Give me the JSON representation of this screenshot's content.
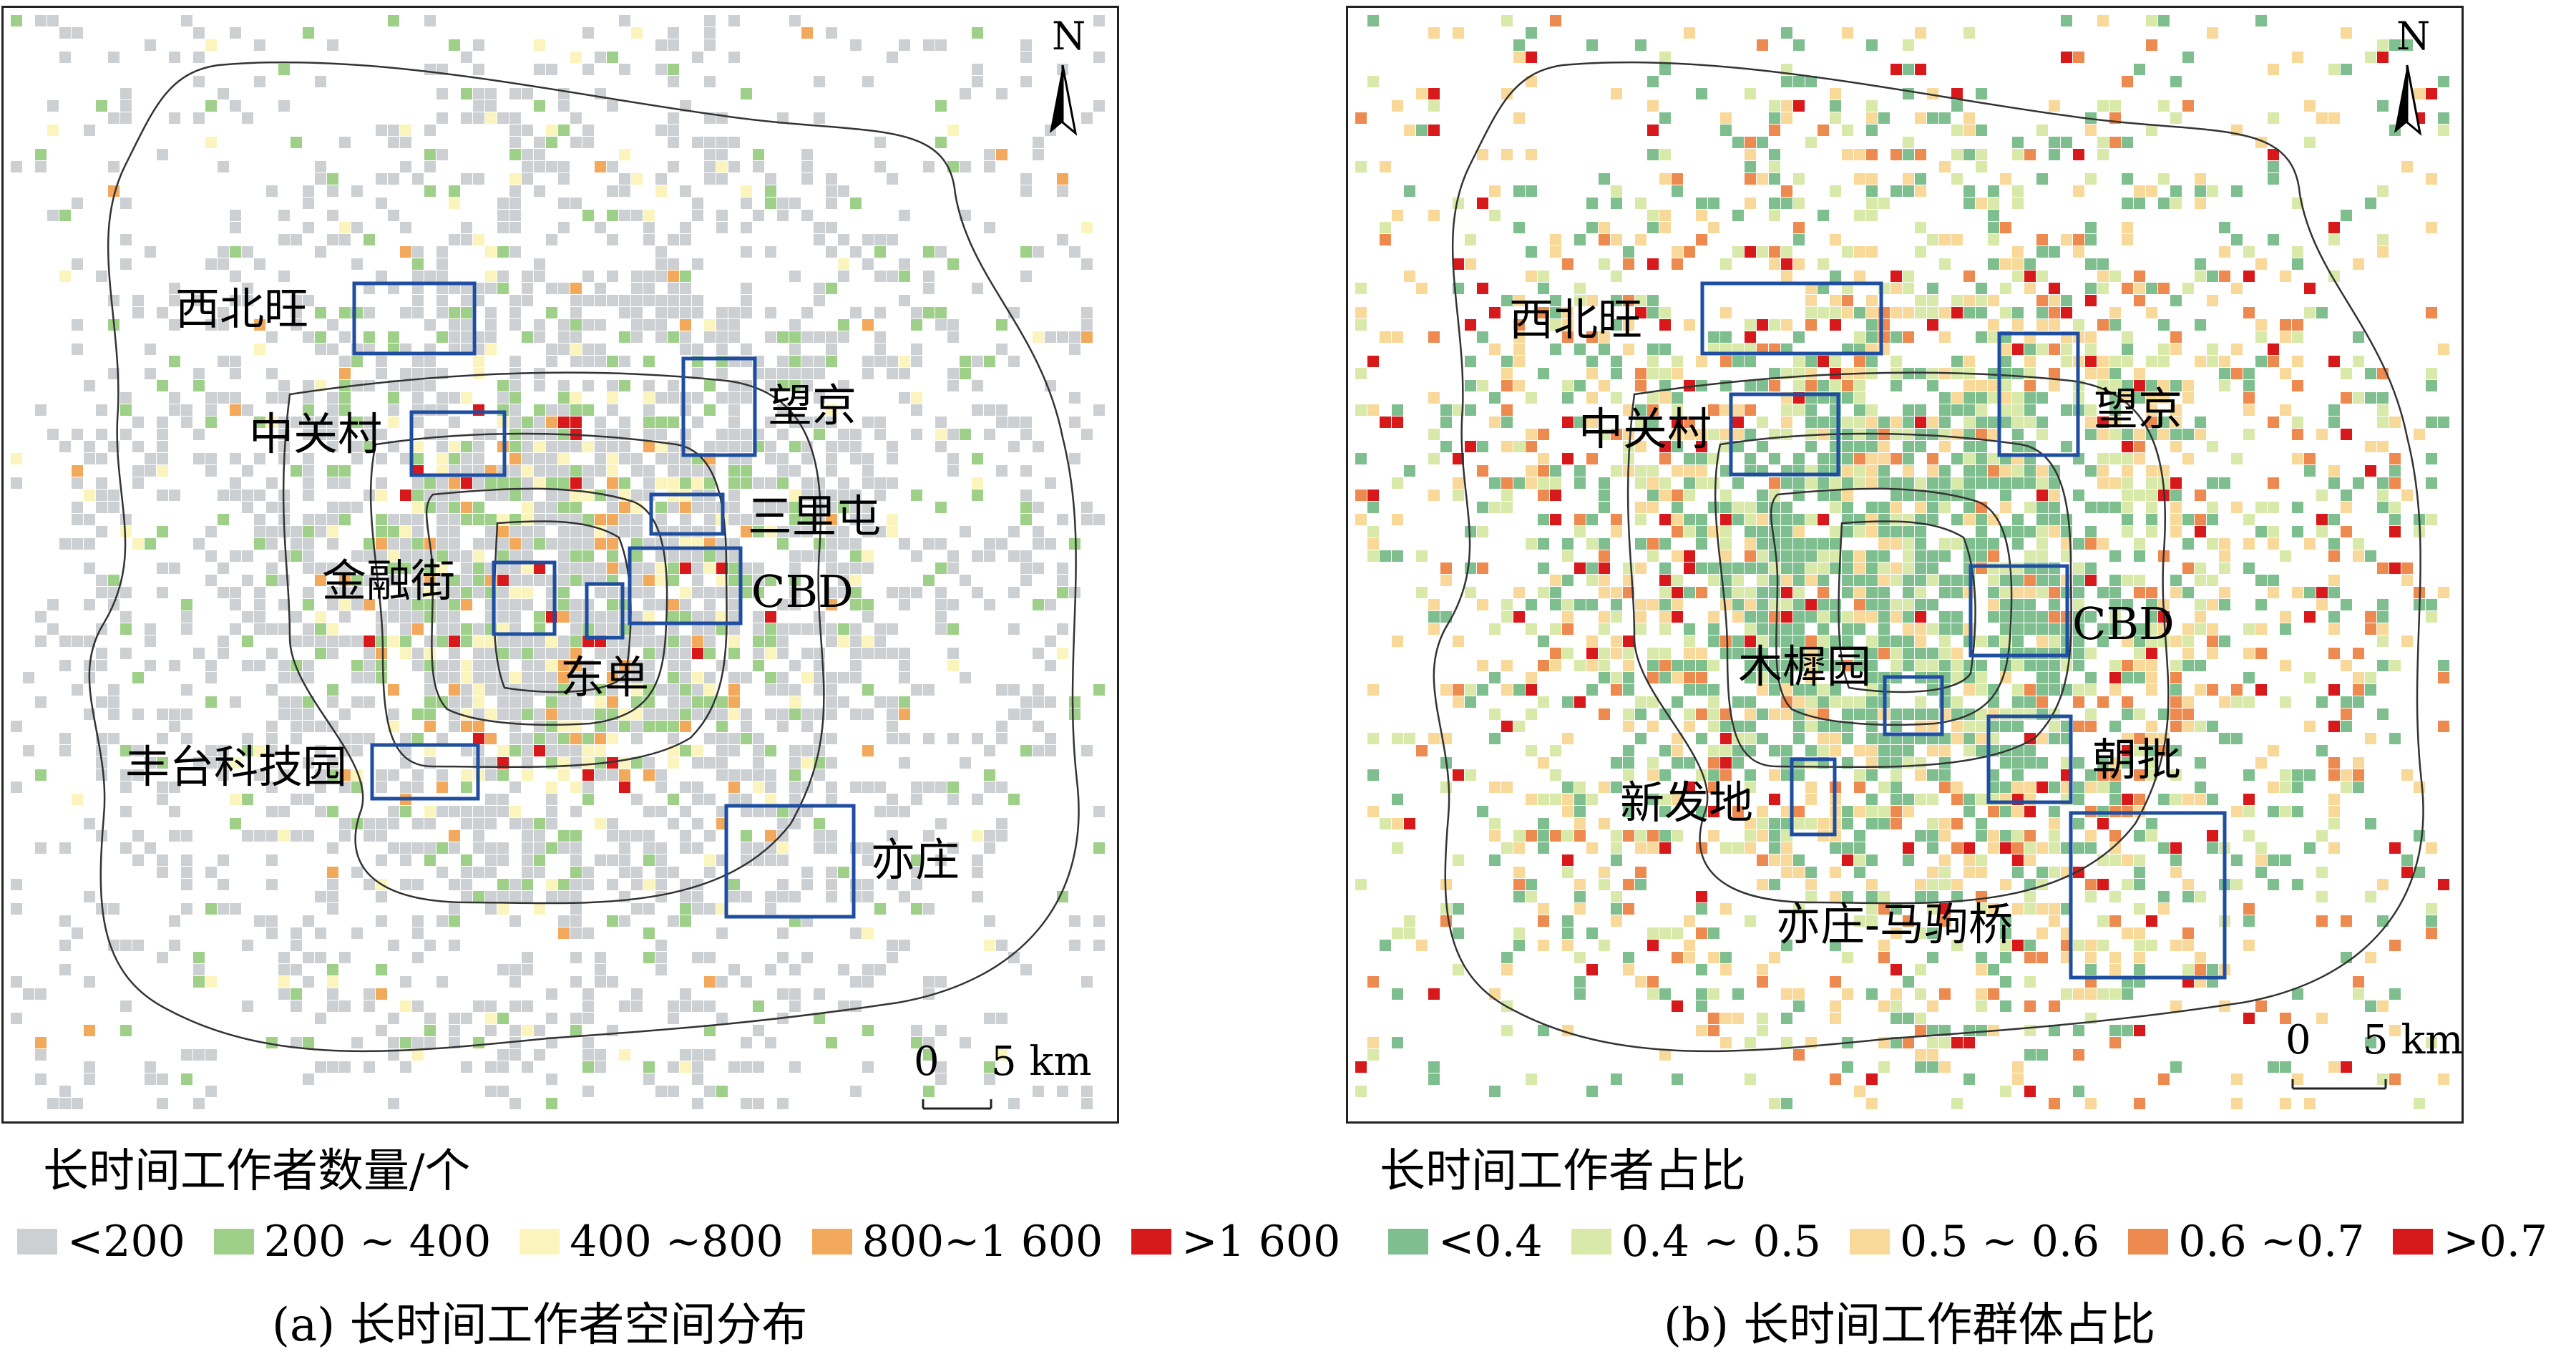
{
  "colors": {
    "grey": "#cdd0d3",
    "green_a": "#9fd08a",
    "yellow_a": "#fbf5bd",
    "orange_a": "#f3a95c",
    "red_a": "#d7191c",
    "green_b": "#7fbf8f",
    "lightgreen_b": "#d8e9a9",
    "yellow_b": "#f8d99a",
    "orange_b": "#ec8a4f",
    "red_b": "#d7191c",
    "box": "#1f4ea1"
  },
  "north_symbol": "N",
  "scale": {
    "zero": "0",
    "distance": "5 km"
  },
  "panel_a": {
    "legend_title": "长时间工作者数量/个",
    "legend": [
      {
        "label": "<200",
        "color": "#cdd0d3"
      },
      {
        "label": "200 ~ 400",
        "color": "#9fd08a"
      },
      {
        "label": "400 ~800",
        "color": "#fbf5bd"
      },
      {
        "label": "800~1 600",
        "color": "#f3a95c"
      },
      {
        "label": ">1 600",
        "color": "#d7191c"
      }
    ],
    "caption": "(a) 长时间工作者空间分布",
    "places": [
      "西北旺",
      "中关村",
      "望京",
      "三里屯",
      "金融街",
      "CBD",
      "东单",
      "丰台科技园",
      "亦庄"
    ]
  },
  "panel_b": {
    "legend_title": "长时间工作者占比",
    "legend": [
      {
        "label": "<0.4",
        "color": "#7fbf8f"
      },
      {
        "label": "0.4 ~ 0.5",
        "color": "#d8e9a9"
      },
      {
        "label": "0.5 ~ 0.6",
        "color": "#f8d99a"
      },
      {
        "label": "0.6 ~0.7",
        "color": "#ec8a4f"
      },
      {
        "label": ">0.7",
        "color": "#d7191c"
      }
    ],
    "caption": "(b) 长时间工作群体占比",
    "places": [
      "西北旺",
      "中关村",
      "望京",
      "CBD",
      "木樨园",
      "朝批",
      "新发地",
      "亦庄-马驹桥"
    ]
  }
}
